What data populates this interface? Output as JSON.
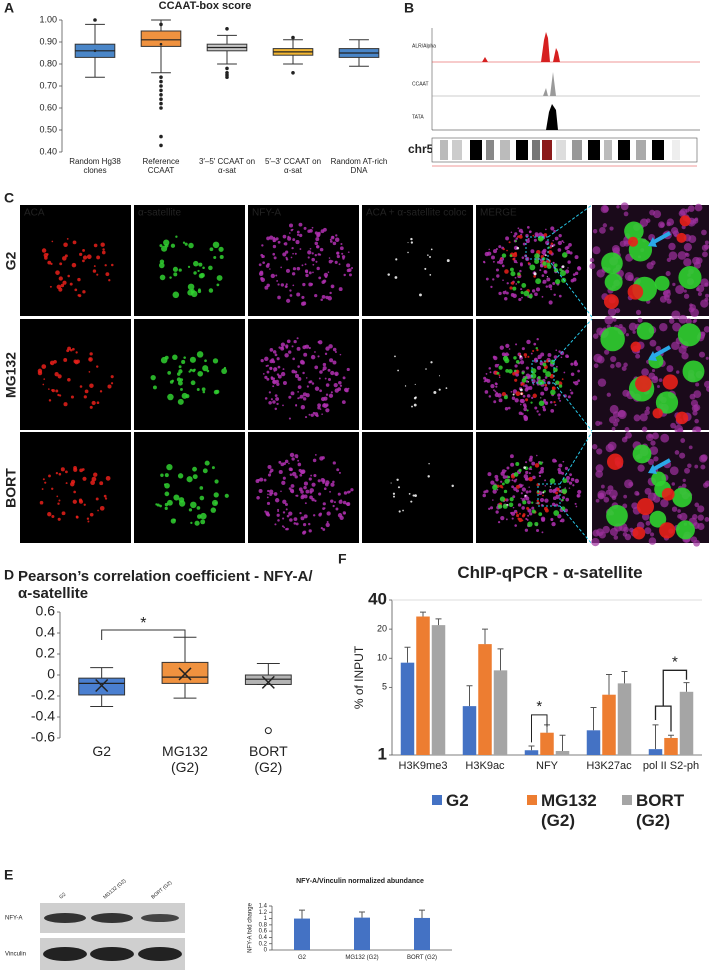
{
  "panels": [
    "A",
    "B",
    "C",
    "D",
    "E",
    "F"
  ],
  "tracks": {
    "names": [
      "ALR/Alpha",
      "CCAAT",
      "TATA"
    ],
    "chromosome": "chr5"
  },
  "images": {
    "columns": [
      "ACA",
      "α-satellite",
      "NFY-A",
      "ACA + α-satellite coloc",
      "MERGE"
    ],
    "rows": [
      "G2",
      "MG132",
      "BORT"
    ]
  },
  "blot": {
    "lanes": [
      "G2",
      "MG132 (G2)",
      "BORT (G2)"
    ],
    "rows": [
      "NFY-A",
      "Vinculin"
    ]
  },
  "chart_data": [
    {
      "type": "box",
      "title": "CCAAT-box score",
      "categories": [
        "Random Hg38 clones",
        "Reference CCAAT",
        "3′–5′ CCAAT on α-sat",
        "5′–3′ CCAAT on α-sat",
        "Random AT-rich DNA"
      ],
      "boxes": [
        {
          "min": 0.74,
          "q1": 0.83,
          "median": 0.86,
          "q3": 0.89,
          "max": 0.98,
          "mean": 0.86,
          "outliers": [
            1.0
          ],
          "color": "#4a86c8"
        },
        {
          "min": 0.76,
          "q1": 0.88,
          "median": 0.91,
          "q3": 0.95,
          "max": 1.0,
          "mean": 0.89,
          "outliers": [
            0.74,
            0.72,
            0.7,
            0.68,
            0.66,
            0.64,
            0.62,
            0.6,
            0.47,
            0.43,
            0.98
          ],
          "color": "#f0923f"
        },
        {
          "min": 0.8,
          "q1": 0.86,
          "median": 0.875,
          "q3": 0.89,
          "max": 0.93,
          "mean": null,
          "outliers": [
            0.96,
            0.78,
            0.76,
            0.75,
            0.74
          ],
          "color": "#c8c8c8"
        },
        {
          "min": 0.8,
          "q1": 0.84,
          "median": 0.855,
          "q3": 0.87,
          "max": 0.91,
          "mean": null,
          "outliers": [
            0.92,
            0.76
          ],
          "color": "#f2b632"
        },
        {
          "min": 0.79,
          "q1": 0.83,
          "median": 0.85,
          "q3": 0.87,
          "max": 0.91,
          "mean": null,
          "outliers": [],
          "color": "#4a86c8"
        }
      ],
      "ylim": [
        0.4,
        1.0
      ],
      "yticks": [
        {
          "value": 0.4,
          "label": "0.40"
        },
        {
          "value": 0.5,
          "label": "0.50"
        },
        {
          "value": 0.6,
          "label": "0.60"
        },
        {
          "value": 0.7,
          "label": "0.70"
        },
        {
          "value": 0.8,
          "label": "0.80"
        },
        {
          "value": 0.9,
          "label": "0.90"
        },
        {
          "value": 1.0,
          "label": "1.00"
        }
      ]
    },
    {
      "type": "box",
      "title": "Pearson’s correlation coefficient - NFY-A/α-satellite",
      "categories": [
        "G2",
        "MG132 (G2)",
        "BORT (G2)"
      ],
      "boxes": [
        {
          "min": -0.3,
          "q1": -0.19,
          "median": -0.08,
          "q3": -0.03,
          "max": 0.07,
          "mean": -0.1,
          "outliers": [],
          "color": "#4a7fd0"
        },
        {
          "min": -0.22,
          "q1": -0.08,
          "median": -0.02,
          "q3": 0.12,
          "max": 0.36,
          "mean": 0.01,
          "outliers": [],
          "color": "#f0923f"
        },
        {
          "min": -0.09,
          "q1": -0.09,
          "median": -0.04,
          "q3": 0.0,
          "max": 0.11,
          "mean": -0.07,
          "outliers": [
            -0.53
          ],
          "color": "#b4b4b4"
        }
      ],
      "annotations": [
        "*"
      ],
      "ylim": [
        -0.6,
        0.6
      ],
      "yticks": [
        -0.6,
        -0.4,
        -0.2,
        0,
        0.2,
        0.4,
        0.6
      ]
    },
    {
      "type": "bar",
      "title": "ChIP-qPCR - α-satellite",
      "y_label": "% of INPUT",
      "log_scale": true,
      "categories": [
        "H3K9me3",
        "H3K9ac",
        "NFY",
        "H3K27ac",
        "pol II S2-ph"
      ],
      "series": [
        {
          "name": "G2",
          "color": "#4472c4",
          "values": [
            9,
            3.2,
            1.12,
            1.8,
            1.15
          ],
          "errors": [
            4,
            2,
            0.12,
            1.3,
            0.9
          ]
        },
        {
          "name": "MG132 (G2)",
          "color": "#ed7d31",
          "values": [
            27,
            14,
            1.7,
            4.2,
            1.5
          ],
          "errors": [
            3,
            6,
            0.35,
            2.6,
            0.1
          ]
        },
        {
          "name": "BORT (G2)",
          "color": "#a5a5a5",
          "values": [
            22,
            7.5,
            1.1,
            5.5,
            4.5
          ],
          "errors": [
            3.5,
            5,
            0.5,
            1.8,
            1.1
          ]
        }
      ],
      "annotations": [
        "*",
        "*"
      ],
      "ylim": [
        1,
        40
      ],
      "yticks": [
        1,
        5,
        10,
        20,
        40
      ]
    },
    {
      "type": "bar",
      "title": "NFY-A/Vinculin normalized abundance",
      "y_label": "NFY-A fold change",
      "categories": [
        "G2",
        "MG132 (G2)",
        "BORT (G2)"
      ],
      "values": [
        1.0,
        1.03,
        1.02
      ],
      "errors": [
        0.27,
        0.18,
        0.25
      ],
      "color": "#4472c4",
      "ylim": [
        0,
        1.4
      ],
      "yticks": [
        0,
        0.2,
        0.4,
        0.6,
        0.8,
        1,
        1.2,
        1.4
      ]
    }
  ]
}
